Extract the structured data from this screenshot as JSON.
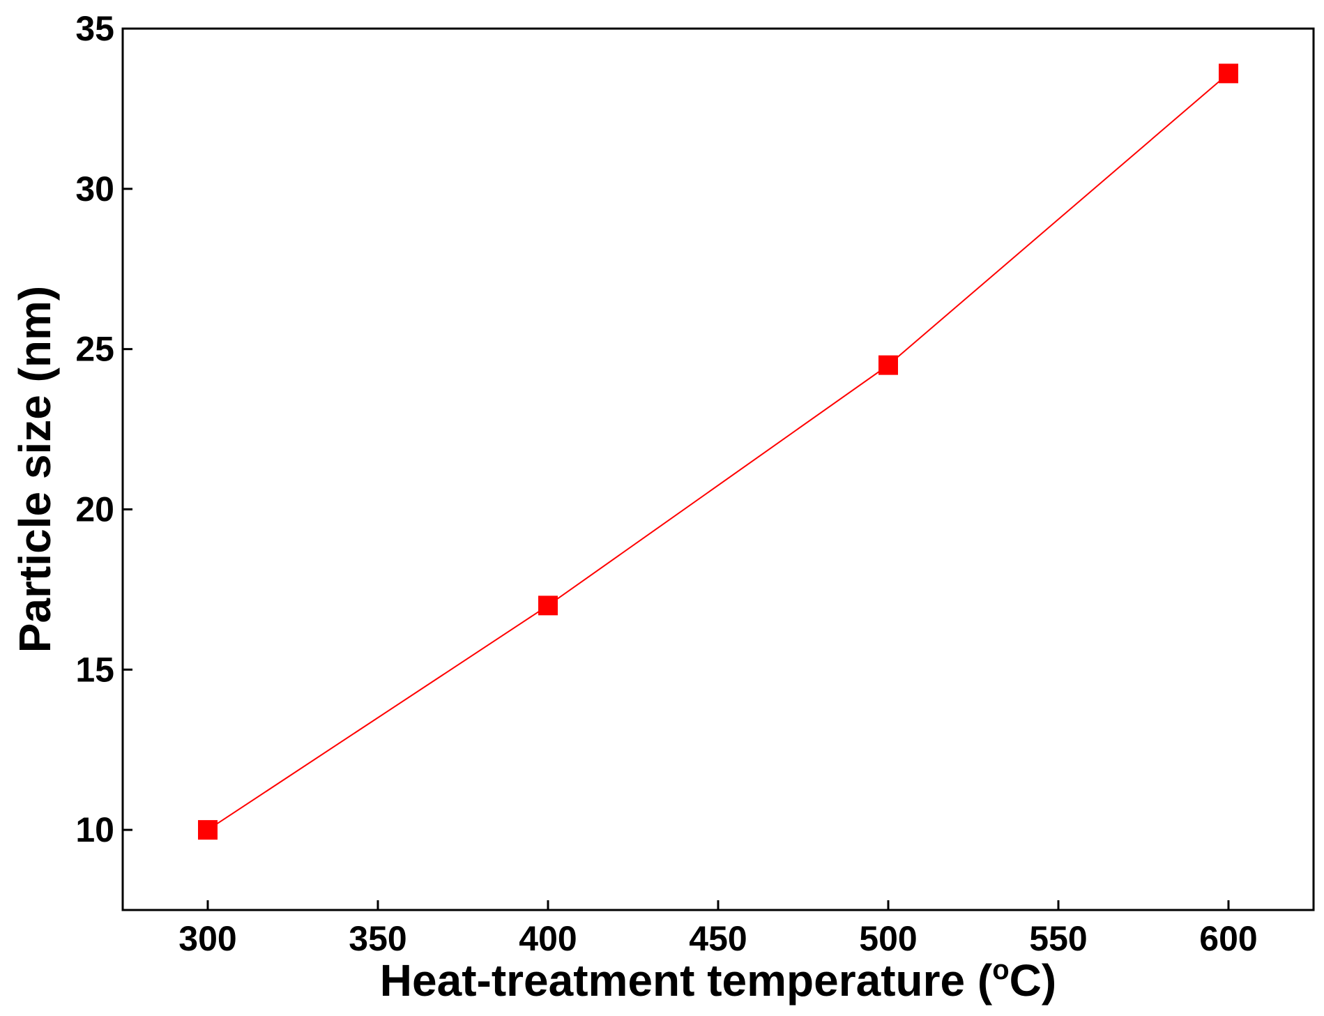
{
  "chart_data": {
    "type": "line",
    "title": "",
    "xlabel": "Heat-treatment temperature (",
    "xlabel_unit_sup": "o",
    "xlabel_unit": "C)",
    "ylabel": "Particle size (nm)",
    "xlim": [
      275,
      625
    ],
    "ylim": [
      7.5,
      35
    ],
    "xticks": [
      300,
      350,
      400,
      450,
      500,
      550,
      600
    ],
    "yticks": [
      10,
      15,
      20,
      25,
      30,
      35
    ],
    "grid": false,
    "series": [
      {
        "name": "Particle size",
        "color": "#ff0000",
        "marker": "square",
        "x": [
          300,
          400,
          500,
          600
        ],
        "y": [
          10.0,
          17.0,
          24.5,
          33.6
        ]
      }
    ]
  }
}
